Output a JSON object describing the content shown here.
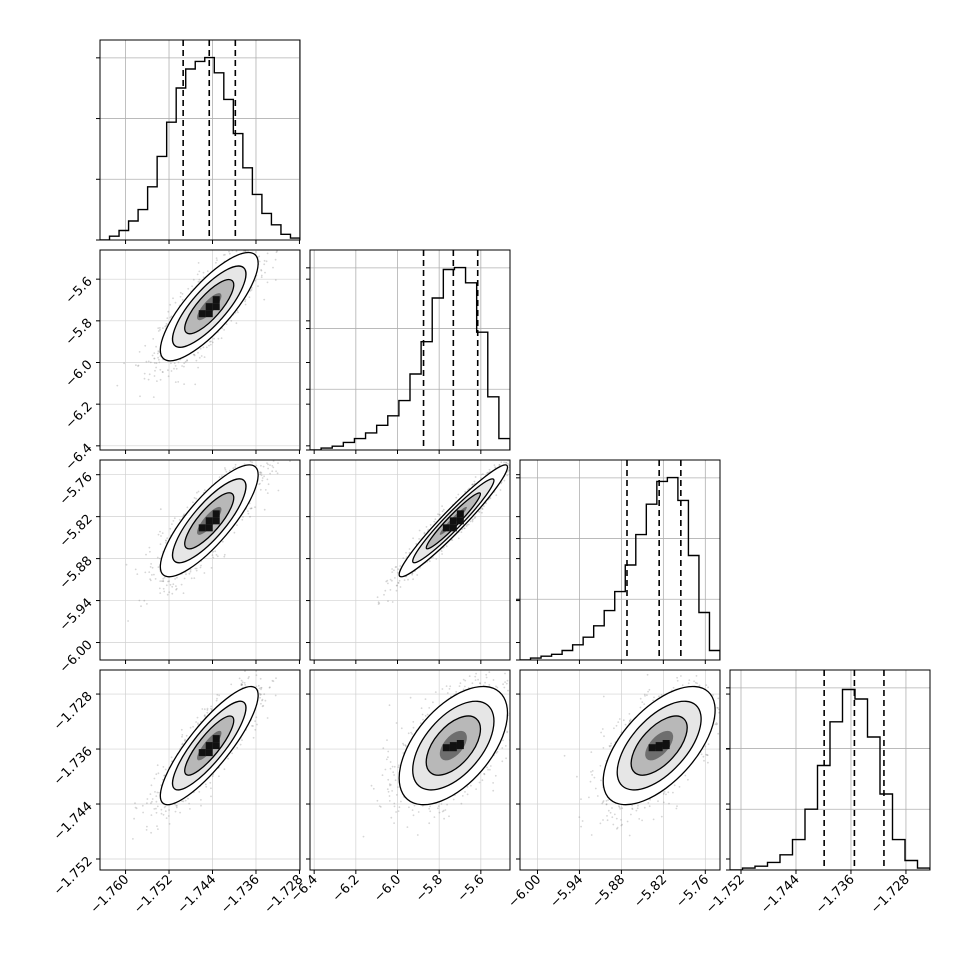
{
  "chart_data": {
    "type": "corner",
    "parameters": [
      {
        "ylim": [
          0,
          1
        ],
        "hist": [
          0.0,
          0.02,
          0.05,
          0.1,
          0.16,
          0.28,
          0.44,
          0.62,
          0.8,
          0.9,
          0.94,
          0.96,
          0.88,
          0.74,
          0.56,
          0.38,
          0.24,
          0.14,
          0.08,
          0.03,
          0.01
        ],
        "quantiles": [
          -1.7494,
          -1.7446,
          -1.7398
        ],
        "ticks": [
          -1.76,
          -1.752,
          -1.744,
          -1.736,
          -1.728
        ],
        "tick_labels": [
          "−1.760",
          "−1.752",
          "−1.744",
          "−1.736",
          "−1.728"
        ],
        "range": [
          -1.7647,
          -1.7279
        ]
      },
      {
        "hist": [
          0.0,
          0.01,
          0.02,
          0.04,
          0.06,
          0.09,
          0.13,
          0.18,
          0.26,
          0.4,
          0.57,
          0.8,
          0.95,
          0.96,
          0.88,
          0.62,
          0.28,
          0.06
        ],
        "quantiles": [
          -5.875,
          -5.732,
          -5.615
        ],
        "ticks": [
          -6.4,
          -6.2,
          -6.0,
          -5.8,
          -5.6
        ],
        "tick_labels": [
          "−6.4",
          "−6.2",
          "−6.0",
          "−5.8",
          "−5.6"
        ],
        "range": [
          -6.42,
          -5.46
        ]
      },
      {
        "hist": [
          0.0,
          0.01,
          0.02,
          0.03,
          0.05,
          0.08,
          0.12,
          0.18,
          0.26,
          0.36,
          0.5,
          0.66,
          0.82,
          0.94,
          0.96,
          0.84,
          0.55,
          0.25,
          0.05
        ],
        "quantiles": [
          -5.872,
          -5.826,
          -5.795
        ],
        "ticks": [
          -6.0,
          -5.94,
          -5.88,
          -5.82,
          -5.76
        ],
        "tick_labels": [
          "−6.00",
          "−5.94",
          "−5.88",
          "−5.82",
          "−5.76"
        ],
        "range": [
          -6.025,
          -5.739
        ]
      },
      {
        "hist": [
          0.0,
          0.01,
          0.02,
          0.04,
          0.08,
          0.16,
          0.32,
          0.55,
          0.78,
          0.95,
          0.9,
          0.7,
          0.4,
          0.16,
          0.05,
          0.01
        ],
        "quantiles": [
          -1.7399,
          -1.7355,
          -1.7312
        ],
        "ticks": [
          -1.752,
          -1.744,
          -1.736,
          -1.728
        ],
        "tick_labels": [
          "−1.752",
          "−1.744",
          "−1.736",
          "−1.728"
        ],
        "range": [
          -1.7536,
          -1.7245
        ]
      }
    ],
    "pairs": [
      {
        "row": 1,
        "col": 0,
        "center": [
          -1.7446,
          -5.732
        ],
        "sd": [
          0.0045,
          0.13
        ],
        "rho": 0.8
      },
      {
        "row": 2,
        "col": 0,
        "center": [
          -1.7446,
          -5.826
        ],
        "sd": [
          0.0045,
          0.04
        ],
        "rho": 0.82
      },
      {
        "row": 2,
        "col": 1,
        "center": [
          -5.732,
          -5.826
        ],
        "sd": [
          0.13,
          0.04
        ],
        "rho": 0.96
      },
      {
        "row": 3,
        "col": 0,
        "center": [
          -1.7446,
          -1.7355
        ],
        "sd": [
          0.0045,
          0.0043
        ],
        "rho": 0.85
      },
      {
        "row": 3,
        "col": 1,
        "center": [
          -5.732,
          -1.7355
        ],
        "sd": [
          0.13,
          0.0043
        ],
        "rho": 0.55
      },
      {
        "row": 3,
        "col": 2,
        "center": [
          -5.826,
          -1.7355
        ],
        "sd": [
          0.04,
          0.0043
        ],
        "rho": 0.6
      }
    ],
    "grid": true,
    "title": "",
    "xlabel": "",
    "ylabel": ""
  }
}
